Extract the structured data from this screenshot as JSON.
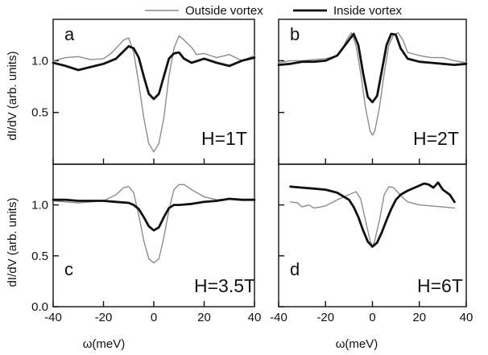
{
  "legend": {
    "outside_label": "Outside vortex",
    "inside_label": "Inside vortex"
  },
  "colors": {
    "outside": "#8c8c8c",
    "inside": "#111111",
    "frame": "#111111"
  },
  "chart_data": {
    "type": "line",
    "ylabel": "dI/dV (arb. units)",
    "xlabel": "ω(meV)",
    "legend_position": "top",
    "grid": false,
    "xlim": [
      -40,
      40
    ],
    "ylim": [
      0,
      1.4
    ],
    "x_ticks": [
      -40,
      -20,
      0,
      20,
      40
    ],
    "x_tick_labels": [
      "-40",
      "-20",
      "0",
      "20",
      "40"
    ],
    "y_ticks": [
      0.0,
      0.5,
      1.0
    ],
    "y_tick_labels": [
      "0.0",
      "0.5",
      "1.0"
    ],
    "panels": [
      {
        "letter": "a",
        "field_label": "H=1T",
        "series": [
          {
            "name": "Outside vortex",
            "x": [
              -40,
              -35,
              -30,
              -25,
              -20,
              -17,
              -15,
              -12,
              -10,
              -8,
              -6,
              -4,
              -2,
              0,
              2,
              4,
              6,
              8,
              10,
              12,
              15,
              17,
              20,
              25,
              30,
              35,
              40
            ],
            "values": [
              1.0,
              1.03,
              1.04,
              1.01,
              1.02,
              1.07,
              1.12,
              1.2,
              1.22,
              1.08,
              0.78,
              0.45,
              0.2,
              0.12,
              0.2,
              0.45,
              0.85,
              1.12,
              1.24,
              1.2,
              1.13,
              1.06,
              1.07,
              1.03,
              1.06,
              1.0,
              1.05
            ]
          },
          {
            "name": "Inside vortex",
            "x": [
              -40,
              -35,
              -30,
              -25,
              -20,
              -15,
              -10,
              -8,
              -6,
              -4,
              -2,
              0,
              2,
              4,
              6,
              8,
              10,
              12,
              15,
              20,
              25,
              30,
              35,
              40
            ],
            "values": [
              0.98,
              0.95,
              0.91,
              0.94,
              0.97,
              1.02,
              1.14,
              1.12,
              1.03,
              0.85,
              0.68,
              0.63,
              0.68,
              0.85,
              1.02,
              1.07,
              1.08,
              1.02,
              0.98,
              1.02,
              0.98,
              0.95,
              1.0,
              1.03
            ]
          }
        ]
      },
      {
        "letter": "b",
        "field_label": "H=2T",
        "series": [
          {
            "name": "Outside vortex",
            "x": [
              -40,
              -35,
              -30,
              -25,
              -20,
              -15,
              -13,
              -11,
              -9,
              -7,
              -5,
              -3,
              -1,
              0,
              1,
              3,
              5,
              7,
              9,
              11,
              13,
              15,
              20,
              25,
              30,
              35,
              40
            ],
            "values": [
              0.98,
              1.0,
              1.0,
              1.01,
              1.02,
              1.05,
              1.1,
              1.2,
              1.27,
              1.15,
              0.88,
              0.55,
              0.32,
              0.28,
              0.32,
              0.55,
              0.88,
              1.15,
              1.25,
              1.27,
              1.2,
              1.08,
              1.05,
              1.03,
              1.03,
              1.0,
              0.98
            ]
          },
          {
            "name": "Inside vortex",
            "x": [
              -40,
              -35,
              -30,
              -25,
              -20,
              -15,
              -10,
              -8,
              -6,
              -4,
              -2,
              0,
              2,
              4,
              6,
              8,
              10,
              12,
              15,
              20,
              25,
              30,
              35,
              40
            ],
            "values": [
              0.96,
              0.97,
              0.99,
              0.99,
              1.0,
              1.05,
              1.2,
              1.26,
              1.15,
              0.88,
              0.65,
              0.6,
              0.66,
              0.9,
              1.15,
              1.26,
              1.25,
              1.12,
              1.02,
              0.99,
              0.98,
              0.97,
              0.96,
              0.97
            ]
          }
        ]
      },
      {
        "letter": "c",
        "field_label": "H=3.5T",
        "series": [
          {
            "name": "Outside vortex",
            "x": [
              -40,
              -35,
              -30,
              -25,
              -20,
              -15,
              -12,
              -10,
              -8,
              -6,
              -4,
              -2,
              0,
              2,
              4,
              6,
              8,
              10,
              12,
              15,
              20,
              25,
              30,
              35,
              40
            ],
            "values": [
              1.04,
              1.03,
              1.02,
              1.03,
              1.04,
              1.1,
              1.17,
              1.18,
              1.12,
              0.9,
              0.65,
              0.47,
              0.43,
              0.47,
              0.68,
              0.95,
              1.15,
              1.2,
              1.2,
              1.15,
              1.08,
              1.05,
              1.06,
              1.05,
              1.05
            ]
          },
          {
            "name": "Inside vortex",
            "x": [
              -40,
              -35,
              -30,
              -25,
              -20,
              -15,
              -10,
              -8,
              -6,
              -4,
              -2,
              0,
              2,
              4,
              6,
              8,
              10,
              15,
              20,
              25,
              30,
              35,
              40
            ],
            "values": [
              1.05,
              1.05,
              1.04,
              1.04,
              1.04,
              1.03,
              1.02,
              1.0,
              0.96,
              0.88,
              0.79,
              0.75,
              0.78,
              0.88,
              0.97,
              1.0,
              1.0,
              1.01,
              1.03,
              1.04,
              1.06,
              1.05,
              1.05
            ]
          }
        ]
      },
      {
        "letter": "d",
        "field_label": "H=6T",
        "series": [
          {
            "name": "Outside vortex",
            "x": [
              -35,
              -32,
              -30,
              -27,
              -25,
              -22,
              -20,
              -15,
              -10,
              -7,
              -5,
              -3,
              -1,
              0,
              1,
              3,
              5,
              7,
              9,
              11,
              13,
              15,
              20,
              25,
              30,
              35
            ],
            "values": [
              1.03,
              1.02,
              0.98,
              1.0,
              0.97,
              0.98,
              0.99,
              1.05,
              1.1,
              1.13,
              1.06,
              0.85,
              0.65,
              0.59,
              0.65,
              0.85,
              1.1,
              1.18,
              1.17,
              1.12,
              1.07,
              1.03,
              1.0,
              0.99,
              0.98,
              0.97
            ]
          },
          {
            "name": "Inside vortex",
            "x": [
              -35,
              -30,
              -25,
              -20,
              -15,
              -10,
              -8,
              -6,
              -4,
              -2,
              0,
              2,
              4,
              6,
              8,
              10,
              12,
              15,
              18,
              20,
              22,
              24,
              26,
              28,
              30,
              33,
              35
            ],
            "values": [
              1.18,
              1.17,
              1.16,
              1.15,
              1.12,
              1.05,
              0.98,
              0.88,
              0.75,
              0.64,
              0.59,
              0.63,
              0.73,
              0.85,
              0.96,
              1.05,
              1.1,
              1.14,
              1.17,
              1.19,
              1.21,
              1.2,
              1.17,
              1.22,
              1.15,
              1.1,
              1.03
            ]
          }
        ]
      }
    ]
  }
}
